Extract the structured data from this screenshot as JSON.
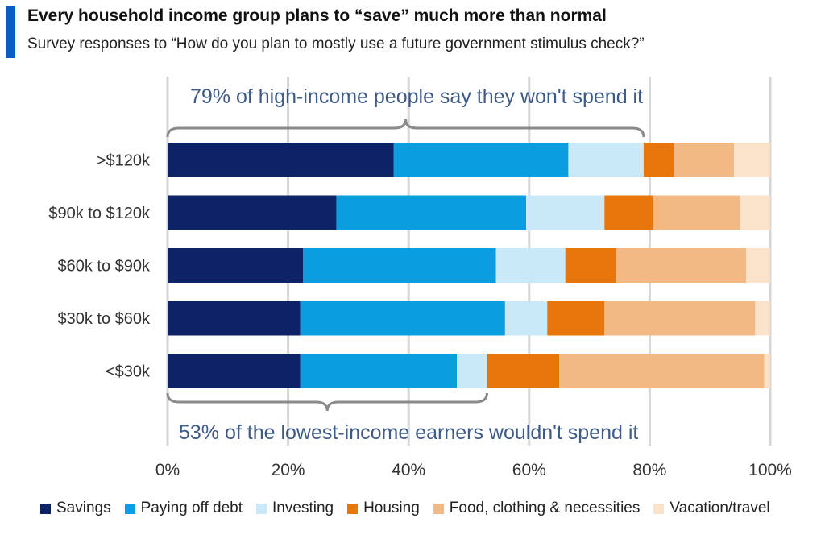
{
  "header": {
    "title": "Every household income group plans to “save” much more than normal",
    "subtitle": "Survey responses to “How do you plan to mostly use a future government stimulus check?”"
  },
  "colors": {
    "accent": "#0a5bc4",
    "annotation_text": "#3e5a86",
    "brace": "#8a8a8a",
    "gridline": "#d6d6d6"
  },
  "chart_data": {
    "type": "bar",
    "orientation": "horizontal",
    "stacked": true,
    "categories": [
      ">$120k",
      "$90k to $120k",
      "$60k to $90k",
      "$30k to $60k",
      "<$30k"
    ],
    "series": [
      {
        "name": "Savings",
        "color": "#0d2366",
        "values": [
          37.5,
          28,
          22.5,
          22,
          22
        ]
      },
      {
        "name": "Paying off debt",
        "color": "#0a9ee0",
        "values": [
          29,
          31.5,
          32,
          34,
          26
        ]
      },
      {
        "name": "Investing",
        "color": "#c9e9f8",
        "values": [
          12.5,
          13,
          11.5,
          7,
          5
        ]
      },
      {
        "name": "Housing",
        "color": "#e8760a",
        "values": [
          5,
          8,
          8.5,
          9.5,
          12
        ]
      },
      {
        "name": "Food, clothing & necessities",
        "color": "#f3b985",
        "values": [
          10,
          14.5,
          21.5,
          25,
          34
        ]
      },
      {
        "name": "Vacation/travel",
        "color": "#fbe3cb",
        "values": [
          6,
          5,
          4,
          2.5,
          1
        ]
      }
    ],
    "x_ticks": [
      "0%",
      "20%",
      "40%",
      "60%",
      "80%",
      "100%"
    ],
    "xlim": [
      0,
      100
    ],
    "grid": "vertical",
    "legend_position": "bottom",
    "annotations": [
      {
        "text": "79% of  high-income people say they won't spend it",
        "span": [
          0,
          79
        ],
        "side": "top"
      },
      {
        "text": "53% of the lowest-income earners wouldn't spend it",
        "span": [
          0,
          53
        ],
        "side": "bottom"
      }
    ]
  }
}
